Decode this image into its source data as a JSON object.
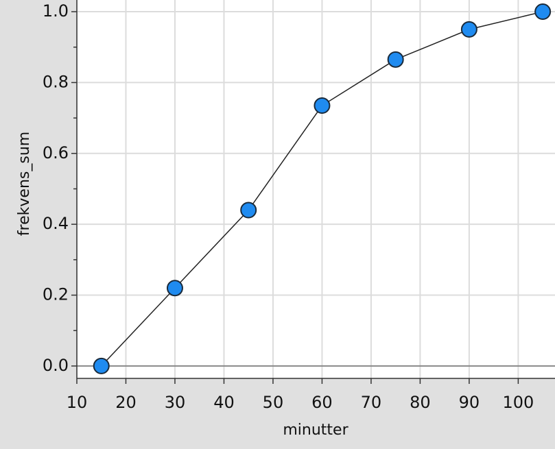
{
  "chart_data": {
    "type": "line",
    "x_label": "minutter",
    "y_label": "frekvens_sum",
    "x": [
      15,
      30,
      45,
      60,
      75,
      90,
      105
    ],
    "series": [
      {
        "color": "#1f8bf0",
        "values": [
          0,
          0.22,
          0.44,
          0.735,
          0.865,
          0.95,
          1.0
        ]
      }
    ],
    "xlim": [
      10,
      107.5
    ],
    "ylim": [
      -0.035,
      1.033
    ],
    "xticks": [
      10,
      20,
      30,
      40,
      50,
      60,
      70,
      80,
      90,
      100
    ],
    "yticks": [
      {
        "value": 0,
        "label": "0.0"
      },
      0.2,
      0.4,
      0.6,
      0.8,
      {
        "value": 1,
        "label": "1.0"
      }
    ],
    "yminorticks": [
      0.1,
      0.3,
      0.5,
      0.7,
      0.9
    ],
    "grid": true
  }
}
